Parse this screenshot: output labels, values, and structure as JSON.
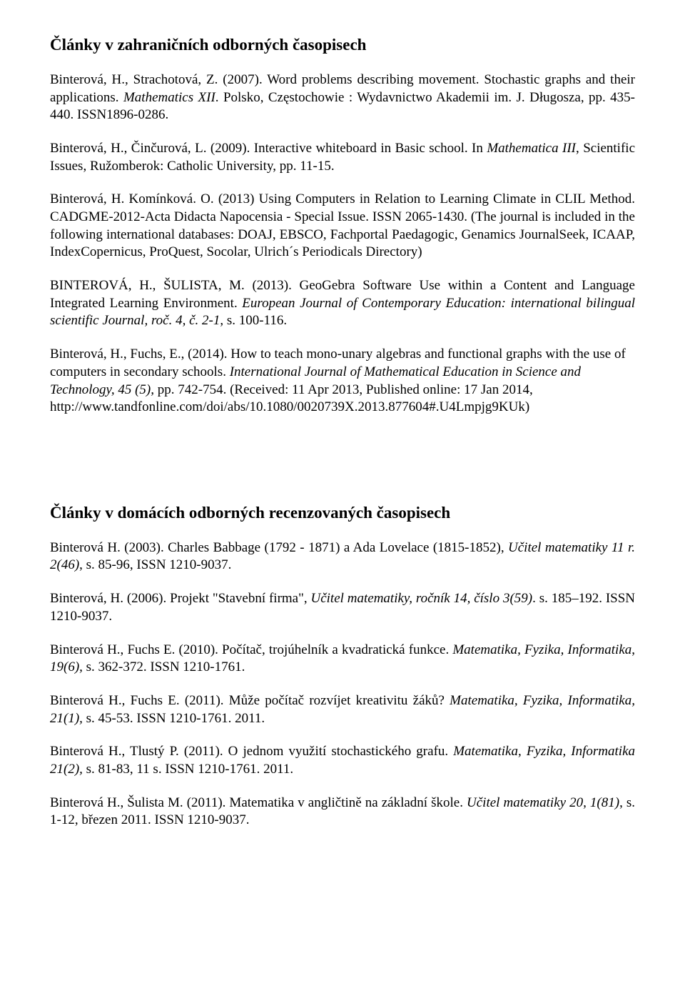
{
  "section1": {
    "heading": "Články v zahraničních odborných časopisech",
    "entries": {
      "e1": {
        "a": "Binterová, H., Strachotová, Z. (2007). Word problems describing movement. Stochastic graphs and their applications. ",
        "i1": "Mathematics XII",
        "b": ". Polsko, Częstochowie : Wydavnictwo Akademii im. J. Długosza, pp. 435-440. ISSN1896-0286."
      },
      "e2": {
        "a": "Binterová, H., Činčurová, L. (2009). Interactive whiteboard in Basic school. In ",
        "i1": "Mathematica III",
        "b": ", Scientific Issues,  Ružomberok: Catholic University, pp. 11-15."
      },
      "e3": {
        "a": "Binterová, H. Komínková. O. (2013) Using Computers in Relation to Learning Climate in CLIL Method. CADGME-2012-Acta Didacta Napocensia - Special Issue. ISSN 2065-1430. (The journal is included in the following international databases: DOAJ, EBSCO, Fachportal Paedagogic, Genamics JournalSeek, ICAAP, IndexCopernicus,  ProQuest,  Socolar,  Ulrich´s Periodicals Directory)"
      },
      "e4": {
        "a": "BINTEROVÁ, H., ŠULISTA, M. (2013). GeoGebra Software Use within a Content and Language Integrated Learning Environment. ",
        "i1": "European Journal of Contemporary Education: international bilingual scientific Journal, roč. 4, č. 2-1",
        "b": ", s. 100-116."
      },
      "e5": {
        "a": "Binterová, H., Fuchs, E., (2014). How to teach mono-unary algebras and functional graphs with the use of computers in secondary schools. ",
        "i1": "International Journal of Mathematical Education in Science and Technology, 45 (5),",
        "b": " pp. 742-754. (Received: 11 Apr 2013, Published online: 17 Jan 2014, http://www.tandfonline.com/doi/abs/10.1080/0020739X.2013.877604#.U4Lmpjg9KUk)"
      }
    }
  },
  "section2": {
    "heading": "Články v domácích odborných recenzovaných časopisech",
    "entries": {
      "e1": {
        "a": "Binterová H. (2003). Charles Babbage (1792 - 1871) a Ada Lovelace (1815-1852), ",
        "i1": "Učitel matematiky 11 r. 2(46)",
        "b": ", s. 85-96, ISSN 1210-9037."
      },
      "e2": {
        "a": "Binterová, H. (2006). Projekt \"Stavební firma\", ",
        "i1": "Učitel matematiky, ročník 14, číslo 3(59)",
        "b": ". s. 185–192. ISSN 1210-9037."
      },
      "e3": {
        "a": "Binterová H., Fuchs E. (2010). Počítač, trojúhelník a kvadratická funkce. ",
        "i1": "Matematika, Fyzika, Informatika",
        "b": ", ",
        "i2": "19(6),",
        "c": " s. 362-372. ISSN 1210-1761."
      },
      "e4": {
        "a": "Binterová H., Fuchs E. (2011). Může počítač rozvíjet kreativitu žáků? ",
        "i1": "Matematika, Fyzika, Informatika, 21(1),",
        "b": " s. 45-53. ISSN 1210-1761. 2011."
      },
      "e5": {
        "a": "Binterová H., Tlustý P. (2011). O jednom využití stochastického grafu. ",
        "i1": "Matematika, Fyzika, Informatika 21(2),",
        "b": "  s. 81-83, 11 s. ISSN 1210-1761. 2011."
      },
      "e6": {
        "a": "Binterová H., Šulista M. (2011). Matematika v angličtině na základní škole. ",
        "i1": "Učitel matematiky 20, 1(81)",
        "b": ", s. 1-12, březen 2011. ISSN 1210-9037."
      }
    }
  }
}
